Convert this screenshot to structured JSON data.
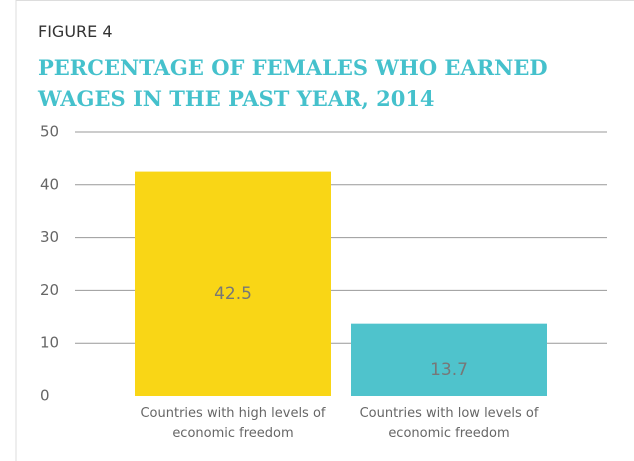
{
  "chart_data": {
    "type": "bar",
    "figure_label": "FIGURE 4",
    "title": "PERCENTAGE OF FEMALES WHO EARNED WAGES IN THE PAST YEAR, 2014",
    "categories": [
      "Countries with high levels of economic freedom",
      "Countries with low levels of economic freedom"
    ],
    "values": [
      42.5,
      13.7
    ],
    "colors": [
      "#f9d616",
      "#4fc3cc"
    ],
    "ylim": [
      0,
      50
    ],
    "yticks": [
      0,
      10,
      20,
      30,
      40,
      50
    ],
    "grid": true
  }
}
